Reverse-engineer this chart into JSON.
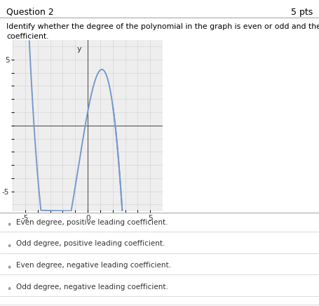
{
  "title": "Question 2",
  "pts": "5 pts",
  "question_text_line1": "Identify whether the degree of the polynomial in the graph is even or odd and the sign of the leading",
  "question_text_line2": "coefficient.",
  "curve_color": "#7799cc",
  "curve_linewidth": 1.4,
  "xlim": [
    -6,
    6
  ],
  "ylim": [
    -6.5,
    6.5
  ],
  "grid_color": "#d0d0d0",
  "grid_linewidth": 0.4,
  "axis_color": "#555555",
  "bg_color": "#eeeeee",
  "choices": [
    "Even degree, positive leading coefficient.",
    "Odd degree, positive leading coefficient.",
    "Even degree, negative leading coefficient.",
    "Odd degree, negative leading coefficient."
  ],
  "choice_fontsize": 7.5,
  "outer_bg": "#ffffff",
  "poly_a": -4.3,
  "poly_b": 0.2,
  "poly_c": -2.2,
  "poly_scale": 0.55
}
